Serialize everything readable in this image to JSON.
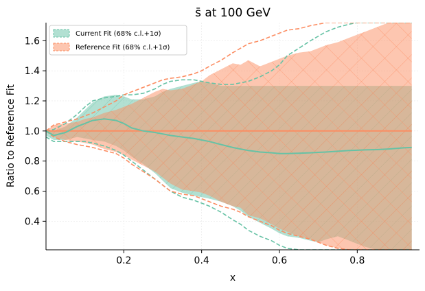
{
  "chart_data": {
    "type": "area",
    "title": "s̄ at 100 GeV",
    "xlabel": "x",
    "ylabel": "Ratio to Reference Fit",
    "xlim": [
      0.0,
      0.96
    ],
    "ylim": [
      0.21,
      1.72
    ],
    "xticks": [
      0.2,
      0.4,
      0.6,
      0.8
    ],
    "xtick_labels": [
      "0.2",
      "0.4",
      "0.6",
      "0.8"
    ],
    "yticks": [
      0.4,
      0.6,
      0.8,
      1.0,
      1.2,
      1.4,
      1.6
    ],
    "ytick_labels": [
      "0.4",
      "0.6",
      "0.8",
      "1.0",
      "1.2",
      "1.4",
      "1.6"
    ],
    "grid": true,
    "legend_position": "upper left",
    "colors": {
      "current": "#66c2a5",
      "reference": "#fc8d62"
    },
    "x": [
      0.0,
      0.02,
      0.05,
      0.08,
      0.1,
      0.12,
      0.15,
      0.18,
      0.2,
      0.22,
      0.25,
      0.28,
      0.3,
      0.32,
      0.35,
      0.38,
      0.4,
      0.42,
      0.45,
      0.48,
      0.5,
      0.52,
      0.55,
      0.58,
      0.6,
      0.62,
      0.65,
      0.68,
      0.7,
      0.72,
      0.75,
      0.78,
      0.8,
      0.82,
      0.85,
      0.88,
      0.9,
      0.92,
      0.94
    ],
    "series": [
      {
        "name": "Current Fit (68% c.l.+1σ)",
        "central": [
          1.0,
          0.97,
          0.99,
          1.03,
          1.05,
          1.07,
          1.08,
          1.07,
          1.05,
          1.02,
          1.0,
          0.99,
          0.98,
          0.97,
          0.96,
          0.95,
          0.94,
          0.93,
          0.91,
          0.89,
          0.88,
          0.87,
          0.86,
          0.855,
          0.85,
          0.85,
          0.852,
          0.855,
          0.858,
          0.86,
          0.865,
          0.87,
          0.872,
          0.874,
          0.876,
          0.88,
          0.884,
          0.888,
          0.89
        ],
        "upper_68cl": [
          1.0,
          1.0,
          1.03,
          1.09,
          1.14,
          1.19,
          1.23,
          1.24,
          1.23,
          1.21,
          1.21,
          1.23,
          1.26,
          1.28,
          1.3,
          1.32,
          1.33,
          1.32,
          1.3,
          1.3,
          1.3,
          1.3,
          1.3,
          1.3,
          1.3,
          1.3,
          1.3,
          1.3,
          1.3,
          1.3,
          1.3,
          1.3,
          1.3,
          1.3,
          1.3,
          1.3,
          1.3,
          1.3,
          1.3
        ],
        "lower_68cl": [
          0.97,
          0.94,
          0.94,
          0.96,
          0.95,
          0.94,
          0.93,
          0.9,
          0.87,
          0.83,
          0.78,
          0.72,
          0.67,
          0.62,
          0.59,
          0.57,
          0.56,
          0.55,
          0.53,
          0.5,
          0.47,
          0.43,
          0.39,
          0.35,
          0.32,
          0.3,
          0.29,
          0.27,
          0.26,
          0.28,
          0.3,
          0.27,
          0.25,
          0.23,
          0.21,
          0.21,
          0.21,
          0.21,
          0.21
        ],
        "upper_1sigma": [
          1.0,
          1.01,
          1.05,
          1.11,
          1.16,
          1.2,
          1.22,
          1.23,
          1.24,
          1.24,
          1.25,
          1.28,
          1.31,
          1.33,
          1.34,
          1.34,
          1.33,
          1.32,
          1.31,
          1.31,
          1.32,
          1.33,
          1.36,
          1.4,
          1.44,
          1.5,
          1.55,
          1.6,
          1.63,
          1.66,
          1.69,
          1.71,
          1.72,
          1.72,
          1.72,
          1.72,
          1.72,
          1.72,
          1.72
        ],
        "lower_1sigma": [
          0.96,
          0.93,
          0.93,
          0.93,
          0.93,
          0.92,
          0.9,
          0.87,
          0.84,
          0.8,
          0.74,
          0.68,
          0.64,
          0.6,
          0.56,
          0.54,
          0.52,
          0.5,
          0.46,
          0.41,
          0.38,
          0.34,
          0.3,
          0.27,
          0.24,
          0.22,
          0.21,
          0.21,
          0.21,
          0.21,
          0.21,
          0.21,
          0.21,
          0.21,
          0.21,
          0.21,
          0.21,
          0.21,
          0.21
        ]
      },
      {
        "name": "Reference Fit (68% c.l.+1σ)",
        "central": [
          1.0,
          1.0,
          1.0,
          1.0,
          1.0,
          1.0,
          1.0,
          1.0,
          1.0,
          1.0,
          1.0,
          1.0,
          1.0,
          1.0,
          1.0,
          1.0,
          1.0,
          1.0,
          1.0,
          1.0,
          1.0,
          1.0,
          1.0,
          1.0,
          1.0,
          1.0,
          1.0,
          1.0,
          1.0,
          1.0,
          1.0,
          1.0,
          1.0,
          1.0,
          1.0,
          1.0,
          1.0,
          1.0,
          1.0
        ],
        "upper_68cl": [
          1.0,
          1.04,
          1.05,
          1.06,
          1.08,
          1.09,
          1.12,
          1.14,
          1.16,
          1.18,
          1.22,
          1.26,
          1.28,
          1.27,
          1.28,
          1.31,
          1.33,
          1.37,
          1.41,
          1.45,
          1.44,
          1.47,
          1.43,
          1.46,
          1.48,
          1.5,
          1.52,
          1.53,
          1.55,
          1.57,
          1.59,
          1.62,
          1.64,
          1.66,
          1.69,
          1.72,
          1.72,
          1.72,
          1.72
        ],
        "lower_68cl": [
          1.0,
          0.96,
          0.94,
          0.93,
          0.92,
          0.91,
          0.88,
          0.86,
          0.84,
          0.81,
          0.77,
          0.73,
          0.69,
          0.65,
          0.61,
          0.6,
          0.59,
          0.57,
          0.53,
          0.5,
          0.49,
          0.44,
          0.42,
          0.38,
          0.35,
          0.33,
          0.3,
          0.28,
          0.26,
          0.24,
          0.22,
          0.21,
          0.21,
          0.21,
          0.21,
          0.21,
          0.21,
          0.21,
          0.21
        ],
        "upper_1sigma": [
          1.0,
          1.04,
          1.06,
          1.08,
          1.1,
          1.12,
          1.16,
          1.2,
          1.24,
          1.26,
          1.29,
          1.32,
          1.34,
          1.35,
          1.36,
          1.38,
          1.4,
          1.43,
          1.47,
          1.52,
          1.55,
          1.58,
          1.6,
          1.63,
          1.65,
          1.67,
          1.68,
          1.7,
          1.71,
          1.72,
          1.72,
          1.72,
          1.72,
          1.72,
          1.72,
          1.72,
          1.72,
          1.72,
          1.72
        ],
        "lower_1sigma": [
          1.0,
          0.96,
          0.93,
          0.91,
          0.9,
          0.89,
          0.87,
          0.85,
          0.82,
          0.78,
          0.73,
          0.68,
          0.64,
          0.6,
          0.58,
          0.57,
          0.55,
          0.53,
          0.5,
          0.48,
          0.46,
          0.43,
          0.4,
          0.37,
          0.34,
          0.32,
          0.3,
          0.28,
          0.26,
          0.24,
          0.22,
          0.21,
          0.21,
          0.21,
          0.21,
          0.21,
          0.21,
          0.21,
          0.21
        ]
      }
    ]
  }
}
